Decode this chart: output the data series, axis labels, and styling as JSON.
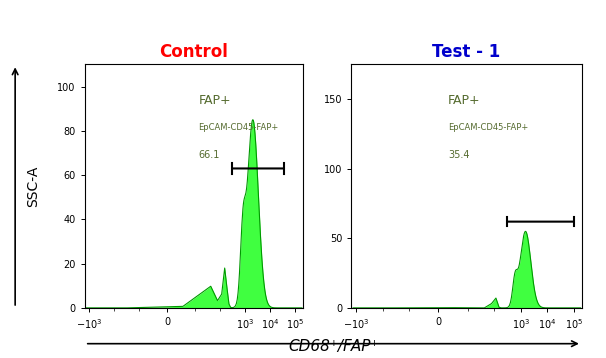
{
  "fig_width": 6.06,
  "fig_height": 3.58,
  "dpi": 100,
  "bg_color": "#ffffff",
  "title_control": "Control",
  "title_test": "Test - 1",
  "title_control_color": "#ff0000",
  "title_test_color": "#0000cc",
  "title_fontsize": 12,
  "ylabel": "SSC-A",
  "xlabel": "CD68⁺/FAP⁺",
  "xlabel_fontsize": 11,
  "ylabel_fontsize": 10,
  "panel_fill": "#ffffff",
  "hist_fill": "#00ff00",
  "hist_edge": "#009900",
  "hist_alpha": 0.75,
  "annotation_color": "#556b2f",
  "bracket_color": "#000000",
  "control_ylim": [
    0,
    110
  ],
  "control_yticks": [
    0,
    20,
    40,
    60,
    80,
    100
  ],
  "test_ylim": [
    0,
    175
  ],
  "test_yticks": [
    0,
    50,
    100,
    150
  ],
  "control_label": "FAP+",
  "control_sublabel": "EpCAM-CD45-FAP+",
  "control_value": "66.1",
  "test_label": "FAP+",
  "test_sublabel": "EpCAM-CD45-FAP+",
  "test_value": "35.4",
  "linthresh": 10,
  "xlim_left": -1500,
  "xlim_right": 200000,
  "xtick_vals": [
    -1000,
    0,
    1000,
    10000,
    100000
  ]
}
